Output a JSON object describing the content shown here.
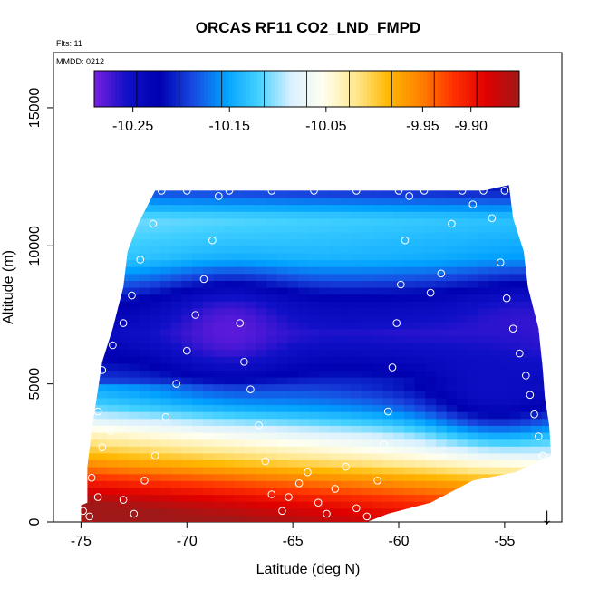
{
  "chart_data": {
    "type": "heatmap",
    "title": "ORCAS RF11 CO2_LND_FMPD",
    "flights_label": "Flts: 11",
    "date_label": "MMDD: 0212",
    "xlabel": "Latitude (deg N)",
    "ylabel": "Altitude (m)",
    "xlim": [
      -76.3,
      -52.3
    ],
    "ylim": [
      0,
      17000
    ],
    "x_ticks": [
      -75,
      -70,
      -65,
      -60,
      -55
    ],
    "x_tick_labels": [
      "-75",
      "-70",
      "-65",
      "-60",
      "-55"
    ],
    "y_ticks": [
      0,
      5000,
      10000,
      15000
    ],
    "y_tick_labels": [
      "0",
      "5000",
      "10000",
      "15000"
    ],
    "colorbar": {
      "min": -10.29,
      "max": -9.85,
      "ticks": [
        -10.25,
        -10.15,
        -10.05,
        -9.95,
        -9.9
      ],
      "tick_labels": [
        "-10.25",
        "-10.15",
        "-10.05",
        "-9.95",
        "-9.90"
      ],
      "colors": [
        "#7a1fe0",
        "#1010c8",
        "#0000b0",
        "#1848e0",
        "#00a0ff",
        "#40d0ff",
        "#d8f0ff",
        "#fffff0",
        "#ffe890",
        "#ffb800",
        "#ff8000",
        "#ff3000",
        "#e00000",
        "#a01818"
      ]
    },
    "domain_outline": [
      [
        -75.0,
        0
      ],
      [
        -75.0,
        600
      ],
      [
        -74.7,
        700
      ],
      [
        -74.7,
        2000
      ],
      [
        -74.5,
        3300
      ],
      [
        -74.3,
        4300
      ],
      [
        -74.0,
        5800
      ],
      [
        -73.5,
        7000
      ],
      [
        -73.0,
        8500
      ],
      [
        -72.8,
        9800
      ],
      [
        -72.3,
        10800
      ],
      [
        -71.5,
        12000
      ],
      [
        -56.0,
        12000
      ],
      [
        -54.8,
        12200
      ],
      [
        -54.6,
        11000
      ],
      [
        -54.1,
        9800
      ],
      [
        -53.9,
        8500
      ],
      [
        -53.4,
        7000
      ],
      [
        -53.2,
        5500
      ],
      [
        -53.1,
        4500
      ],
      [
        -52.9,
        3500
      ],
      [
        -52.8,
        2400
      ],
      [
        -54.5,
        1800
      ],
      [
        -56.5,
        1500
      ],
      [
        -58.5,
        700
      ],
      [
        -60.5,
        300
      ],
      [
        -61.5,
        0
      ]
    ],
    "field_layers": [
      {
        "altitude": 0,
        "value": -9.86
      },
      {
        "altitude": 800,
        "value": -9.9
      },
      {
        "altitude": 1500,
        "value": -9.95
      },
      {
        "altitude": 2300,
        "value": -10.02
      },
      {
        "altitude": 3200,
        "value": -10.08
      },
      {
        "altitude": 4200,
        "value": -10.16
      },
      {
        "altitude": 5500,
        "value": -10.22
      },
      {
        "altitude": 6800,
        "value": -10.26
      },
      {
        "altitude": 8000,
        "value": -10.23
      },
      {
        "altitude": 9500,
        "value": -10.14
      },
      {
        "altitude": 11000,
        "value": -10.12
      },
      {
        "altitude": 12000,
        "value": -10.2
      }
    ],
    "low_value_cores": [
      {
        "lat": -68.0,
        "altitude": 7000,
        "value": -10.28
      },
      {
        "lat": -54.2,
        "altitude": 6800,
        "value": -10.27
      },
      {
        "lat": -55.5,
        "altitude": 5000,
        "value": -10.25
      }
    ],
    "sample_points": [
      [
        -74.9,
        400
      ],
      [
        -74.6,
        200
      ],
      [
        -74.2,
        900
      ],
      [
        -74.5,
        1600
      ],
      [
        -74.0,
        2700
      ],
      [
        -73.6,
        3300
      ],
      [
        -74.2,
        4000
      ],
      [
        -74.0,
        5500
      ],
      [
        -73.5,
        6400
      ],
      [
        -73.0,
        7200
      ],
      [
        -72.6,
        8200
      ],
      [
        -72.2,
        9500
      ],
      [
        -71.6,
        10800
      ],
      [
        -71.2,
        12000
      ],
      [
        -73.0,
        800
      ],
      [
        -72.5,
        300
      ],
      [
        -72.0,
        1500
      ],
      [
        -71.5,
        2400
      ],
      [
        -71.0,
        3800
      ],
      [
        -70.5,
        5000
      ],
      [
        -70.0,
        6200
      ],
      [
        -69.6,
        7500
      ],
      [
        -69.2,
        8800
      ],
      [
        -68.8,
        10200
      ],
      [
        -68.5,
        11800
      ],
      [
        -68.0,
        12000
      ],
      [
        -67.5,
        7200
      ],
      [
        -67.3,
        5800
      ],
      [
        -67.0,
        4800
      ],
      [
        -66.6,
        3500
      ],
      [
        -66.3,
        2200
      ],
      [
        -66.0,
        1000
      ],
      [
        -65.5,
        400
      ],
      [
        -65.2,
        900
      ],
      [
        -64.7,
        1400
      ],
      [
        -64.3,
        1800
      ],
      [
        -63.8,
        700
      ],
      [
        -63.4,
        300
      ],
      [
        -63.0,
        1200
      ],
      [
        -62.5,
        2000
      ],
      [
        -62.0,
        500
      ],
      [
        -61.5,
        200
      ],
      [
        -61.0,
        1500
      ],
      [
        -60.7,
        2800
      ],
      [
        -60.5,
        4000
      ],
      [
        -60.3,
        5600
      ],
      [
        -60.1,
        7200
      ],
      [
        -59.9,
        8600
      ],
      [
        -59.7,
        10200
      ],
      [
        -59.5,
        11800
      ],
      [
        -58.8,
        12000
      ],
      [
        -58.5,
        8300
      ],
      [
        -58.0,
        9000
      ],
      [
        -57.5,
        10800
      ],
      [
        -57.0,
        12000
      ],
      [
        -56.5,
        11500
      ],
      [
        -56.0,
        12000
      ],
      [
        -55.6,
        11000
      ],
      [
        -55.2,
        9400
      ],
      [
        -54.9,
        8100
      ],
      [
        -54.6,
        7000
      ],
      [
        -54.3,
        6100
      ],
      [
        -54.0,
        5300
      ],
      [
        -53.8,
        4600
      ],
      [
        -53.6,
        3900
      ],
      [
        -53.4,
        3100
      ],
      [
        -53.2,
        2400
      ],
      [
        -52.9,
        2000
      ],
      [
        -62.0,
        12000
      ],
      [
        -64.0,
        12000
      ],
      [
        -66.0,
        12000
      ],
      [
        -70.0,
        12000
      ],
      [
        -72.0,
        12000
      ],
      [
        -60.0,
        12000
      ],
      [
        -55.0,
        12000
      ]
    ],
    "flight_direction_arrow": {
      "lat": -53.0,
      "label": "↓"
    }
  }
}
